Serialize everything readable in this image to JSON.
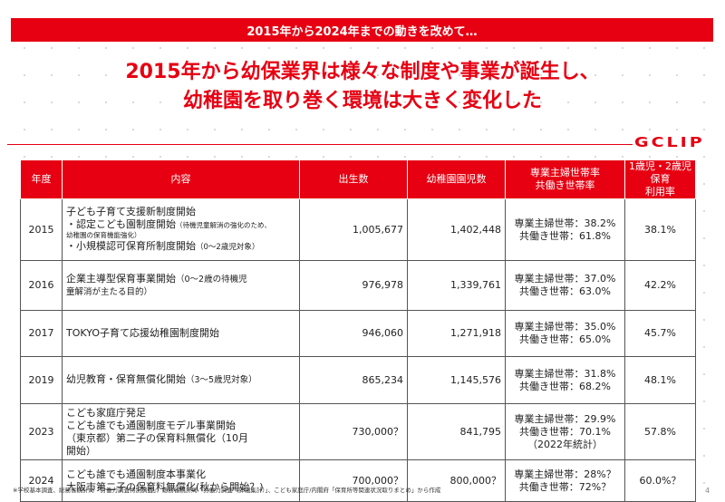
{
  "banner": "2015年から2024年までの動きを改めて…",
  "headline": {
    "line1": "2015年から幼保業界は様々な制度や事業が誕生し、",
    "line2": "幼稚園を取り巻く環境は大きく変化した"
  },
  "logo": "GCLIP",
  "table": {
    "headers": {
      "year": "年度",
      "content": "内容",
      "births": "出生数",
      "kindergarten": "幼稚園園児数",
      "households_1": "専業主婦世帯率",
      "households_2": "共働き世帯率",
      "childcare_1": "1歳児・2歳児保育",
      "childcare_2": "利用率"
    },
    "rows": [
      {
        "year": "2015",
        "content_main": "子ども子育て支援新制度開始",
        "content_b": "・認定こども園制度開始",
        "content_b_note": "（待機児童解消の強化のため、",
        "content_b_note2": "幼稚園の保育機能強化）",
        "content_c": "・小規模認可保育所制度開始",
        "content_c_note": "（0〜2歳児対象）",
        "births": "1,005,677",
        "kindergarten": "1,402,448",
        "hw": "専業主婦世帯：38.2%",
        "dual": "共働き世帯：61.8%",
        "childcare": "38.1%"
      },
      {
        "year": "2016",
        "content_main": "企業主導型保育事業開始",
        "content_note": "（0〜2歳の待機児",
        "content_note2": "童解消が主たる目的）",
        "births": "976,978",
        "kindergarten": "1,339,761",
        "hw": "専業主婦世帯：37.0%",
        "dual": "共働き世帯：63.0%",
        "childcare": "42.2%"
      },
      {
        "year": "2017",
        "content_main": "TOKYO子育て応援幼稚園制度開始",
        "births": "946,060",
        "kindergarten": "1,271,918",
        "hw": "専業主婦世帯：35.0%",
        "dual": "共働き世帯：65.0%",
        "childcare": "45.7%"
      },
      {
        "year": "2019",
        "content_main": "幼児教育・保育無償化開始",
        "content_note": "（3〜5歳児対象）",
        "births": "865,234",
        "kindergarten": "1,145,576",
        "hw": "専業主婦世帯：31.8%",
        "dual": "共働き世帯：68.2%",
        "childcare": "48.1%"
      },
      {
        "year": "2023",
        "content_a": "こども家庭庁発足",
        "content_b": "こども誰でも通園制度モデル事業開始",
        "content_c": "（東京都）第二子の保育料無償化",
        "content_c_note": "（10月",
        "content_d": "開始）",
        "births": "730,000？",
        "kindergarten": "841,795",
        "hw": "専業主婦世帯：29.9%",
        "dual": "共働き世帯：70.1%",
        "extra": "（2022年統計）",
        "childcare": "57.8%"
      },
      {
        "year": "2024",
        "content_a": "こども誰でも通園制度本事業化",
        "content_b": "大阪市第二子の保育料無償化(秋から開始？)",
        "births": "700,000？",
        "kindergarten": "800,000？",
        "hw": "専業主婦世帯：28%？",
        "dual": "共働き世帯：72%？",
        "childcare": "60.0%？"
      }
    ]
  },
  "footnote": "※学校基本調査、総務省統計局「労働力調査特別調査」、総務省統計局「労働力調査（詳細集計）」、こども家庭庁/内閣府「保育所等関連状況取りまとめ」から作成",
  "page_number": "4",
  "colors": {
    "accent": "#e60012"
  }
}
